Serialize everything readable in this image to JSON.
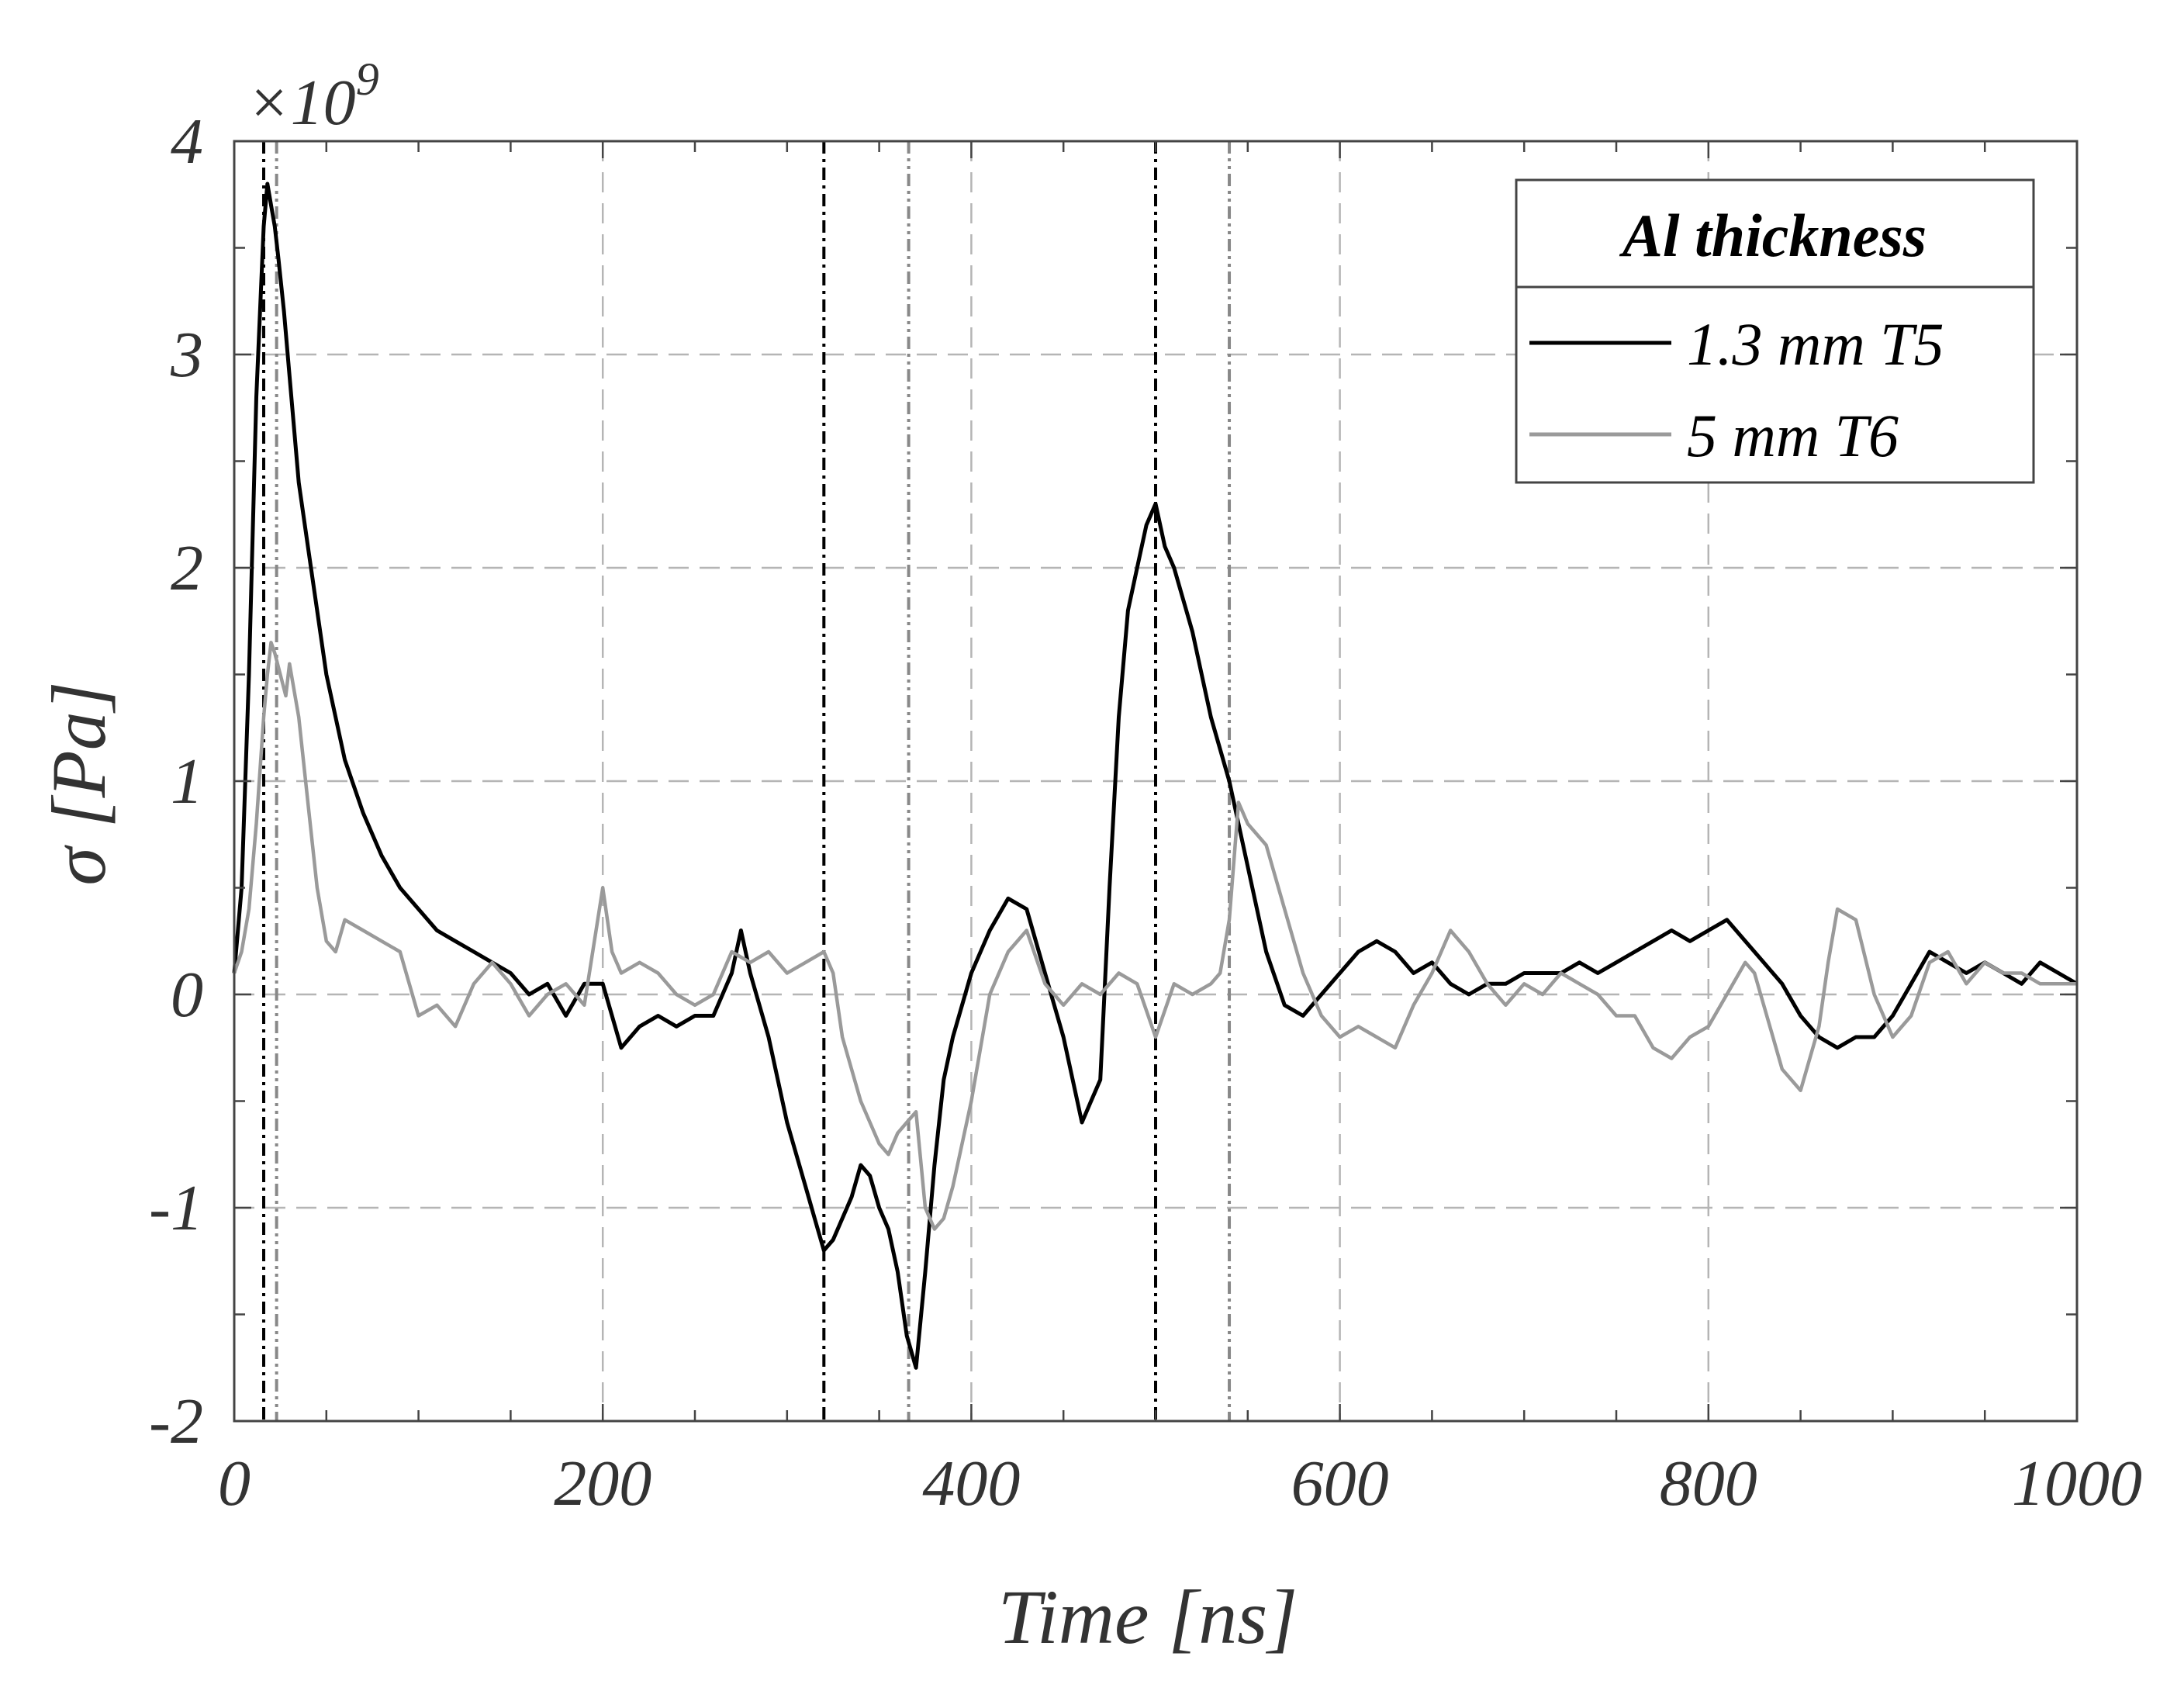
{
  "chart_data": {
    "type": "line",
    "title": "",
    "xlabel": "Time [ns]",
    "ylabel": "σ [Pa]",
    "y_exponent_label": "×10",
    "y_exponent_power": "9",
    "xlim": [
      0,
      1000
    ],
    "ylim": [
      -2,
      4
    ],
    "x_ticks": [
      0,
      200,
      400,
      600,
      800,
      1000
    ],
    "x_tick_labels": [
      "0",
      "200",
      "400",
      "600",
      "800",
      "1000"
    ],
    "y_ticks": [
      -2,
      -1,
      0,
      1,
      2,
      3,
      4
    ],
    "y_tick_labels": [
      "-2",
      "-1",
      "0",
      "1",
      "2",
      "3",
      "4"
    ],
    "grid": true,
    "legend": {
      "title": "Al thickness",
      "position": "top-right"
    },
    "series": [
      {
        "name": "1.3 mm T5",
        "color": "#000000",
        "x": [
          0,
          4,
          8,
          12,
          16,
          18,
          20,
          22,
          24,
          27,
          30,
          35,
          40,
          45,
          50,
          55,
          60,
          70,
          80,
          90,
          100,
          110,
          120,
          130,
          140,
          150,
          160,
          170,
          180,
          190,
          200,
          205,
          210,
          220,
          230,
          240,
          250,
          260,
          270,
          275,
          280,
          290,
          300,
          310,
          315,
          320,
          325,
          330,
          335,
          340,
          345,
          350,
          355,
          360,
          365,
          370,
          375,
          380,
          385,
          390,
          400,
          410,
          420,
          430,
          440,
          450,
          455,
          460,
          465,
          470,
          475,
          480,
          485,
          490,
          495,
          500,
          505,
          510,
          520,
          530,
          540,
          550,
          560,
          570,
          580,
          590,
          600,
          610,
          620,
          630,
          640,
          650,
          660,
          670,
          680,
          690,
          700,
          710,
          720,
          730,
          740,
          750,
          760,
          770,
          780,
          790,
          800,
          810,
          820,
          830,
          840,
          850,
          860,
          870,
          880,
          890,
          900,
          910,
          920,
          930,
          940,
          950,
          960,
          970,
          980,
          990,
          1000
        ],
        "y": [
          0.1,
          0.5,
          1.5,
          2.8,
          3.6,
          3.8,
          3.7,
          3.6,
          3.45,
          3.2,
          2.9,
          2.4,
          2.1,
          1.8,
          1.5,
          1.3,
          1.1,
          0.85,
          0.65,
          0.5,
          0.4,
          0.3,
          0.25,
          0.2,
          0.15,
          0.1,
          0.0,
          0.05,
          -0.1,
          0.05,
          0.05,
          -0.1,
          -0.25,
          -0.15,
          -0.1,
          -0.15,
          -0.1,
          -0.1,
          0.1,
          0.3,
          0.1,
          -0.2,
          -0.6,
          -0.9,
          -1.05,
          -1.2,
          -1.15,
          -1.05,
          -0.95,
          -0.8,
          -0.85,
          -1.0,
          -1.1,
          -1.3,
          -1.6,
          -1.75,
          -1.3,
          -0.8,
          -0.4,
          -0.2,
          0.1,
          0.3,
          0.45,
          0.4,
          0.1,
          -0.2,
          -0.4,
          -0.6,
          -0.5,
          -0.4,
          0.5,
          1.3,
          1.8,
          2.0,
          2.2,
          2.3,
          2.1,
          2.0,
          1.7,
          1.3,
          1.0,
          0.6,
          0.2,
          -0.05,
          -0.1,
          0.0,
          0.1,
          0.2,
          0.25,
          0.2,
          0.1,
          0.15,
          0.05,
          0.0,
          0.05,
          0.05,
          0.1,
          0.1,
          0.1,
          0.15,
          0.1,
          0.15,
          0.2,
          0.25,
          0.3,
          0.25,
          0.3,
          0.35,
          0.25,
          0.15,
          0.05,
          -0.1,
          -0.2,
          -0.25,
          -0.2,
          -0.2,
          -0.1,
          0.05,
          0.2,
          0.15,
          0.1,
          0.15,
          0.1,
          0.05,
          0.15,
          0.1,
          0.05
        ]
      },
      {
        "name": "5 mm T6",
        "color": "#9a9a9a",
        "x": [
          0,
          4,
          8,
          12,
          16,
          18,
          20,
          22,
          25,
          28,
          30,
          35,
          40,
          45,
          50,
          55,
          60,
          70,
          80,
          90,
          100,
          110,
          120,
          130,
          140,
          150,
          160,
          170,
          180,
          190,
          200,
          205,
          210,
          220,
          230,
          240,
          250,
          260,
          270,
          280,
          290,
          300,
          310,
          320,
          325,
          330,
          340,
          350,
          355,
          360,
          365,
          370,
          375,
          380,
          385,
          390,
          400,
          410,
          420,
          430,
          440,
          450,
          460,
          470,
          480,
          490,
          500,
          510,
          520,
          530,
          535,
          540,
          545,
          550,
          560,
          570,
          580,
          590,
          600,
          610,
          620,
          630,
          640,
          650,
          660,
          670,
          680,
          690,
          700,
          710,
          720,
          730,
          740,
          750,
          760,
          770,
          780,
          790,
          800,
          810,
          820,
          825,
          830,
          835,
          840,
          850,
          860,
          865,
          870,
          880,
          890,
          900,
          910,
          920,
          930,
          940,
          950,
          960,
          970,
          980,
          990,
          1000
        ],
        "y": [
          0.1,
          0.2,
          0.4,
          0.8,
          1.3,
          1.5,
          1.65,
          1.6,
          1.5,
          1.4,
          1.55,
          1.3,
          0.9,
          0.5,
          0.25,
          0.2,
          0.35,
          0.3,
          0.25,
          0.2,
          -0.1,
          -0.05,
          -0.15,
          0.05,
          0.15,
          0.05,
          -0.1,
          0.0,
          0.05,
          -0.05,
          0.5,
          0.2,
          0.1,
          0.15,
          0.1,
          0.0,
          -0.05,
          0.0,
          0.2,
          0.15,
          0.2,
          0.1,
          0.15,
          0.2,
          0.1,
          -0.2,
          -0.5,
          -0.7,
          -0.75,
          -0.65,
          -0.6,
          -0.55,
          -1.0,
          -1.1,
          -1.05,
          -0.9,
          -0.5,
          0.0,
          0.2,
          0.3,
          0.05,
          -0.05,
          0.05,
          0.0,
          0.1,
          0.05,
          -0.2,
          0.05,
          0.0,
          0.05,
          0.1,
          0.35,
          0.9,
          0.8,
          0.7,
          0.4,
          0.1,
          -0.1,
          -0.2,
          -0.15,
          -0.2,
          -0.25,
          -0.05,
          0.1,
          0.3,
          0.2,
          0.05,
          -0.05,
          0.05,
          0.0,
          0.1,
          0.05,
          0.0,
          -0.1,
          -0.1,
          -0.25,
          -0.3,
          -0.2,
          -0.15,
          0.0,
          0.15,
          0.1,
          -0.05,
          -0.2,
          -0.35,
          -0.45,
          -0.15,
          0.15,
          0.4,
          0.35,
          0.0,
          -0.2,
          -0.1,
          0.15,
          0.2,
          0.05,
          0.15,
          0.1,
          0.1,
          0.05,
          0.05,
          0.05
        ]
      }
    ],
    "vertical_markers": [
      {
        "x": 16,
        "style": "dash-dot",
        "color": "#000000"
      },
      {
        "x": 23,
        "style": "dash-dot-dot",
        "color": "#888888"
      },
      {
        "x": 320,
        "style": "dash-dot",
        "color": "#000000"
      },
      {
        "x": 366,
        "style": "dash-dot-dot",
        "color": "#888888"
      },
      {
        "x": 500,
        "style": "dash-dot",
        "color": "#000000"
      },
      {
        "x": 540,
        "style": "dash-dot-dot",
        "color": "#888888"
      }
    ]
  }
}
